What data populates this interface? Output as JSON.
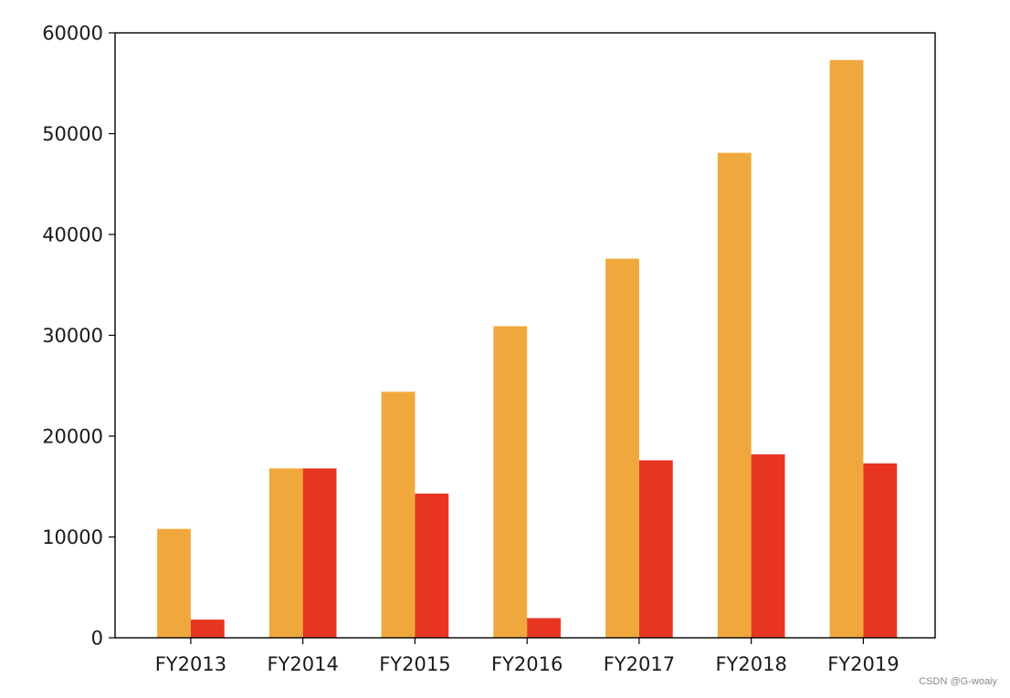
{
  "chart_data": {
    "type": "bar",
    "categories": [
      "FY2013",
      "FY2014",
      "FY2015",
      "FY2016",
      "FY2017",
      "FY2018",
      "FY2019"
    ],
    "series": [
      {
        "color": "#f0a83c",
        "values": [
          10800,
          16800,
          24400,
          30900,
          37600,
          48100,
          57300
        ]
      },
      {
        "color": "#e83523",
        "values": [
          1800,
          16800,
          14300,
          1950,
          17600,
          18200,
          17300
        ]
      }
    ],
    "yticks": [
      "0",
      "10000",
      "20000",
      "30000",
      "40000",
      "50000",
      "60000"
    ],
    "ylim": [
      0,
      60000
    ],
    "title": "",
    "xlabel": "",
    "ylabel": "",
    "grid": false
  },
  "watermark": "CSDN @G-woaiy"
}
